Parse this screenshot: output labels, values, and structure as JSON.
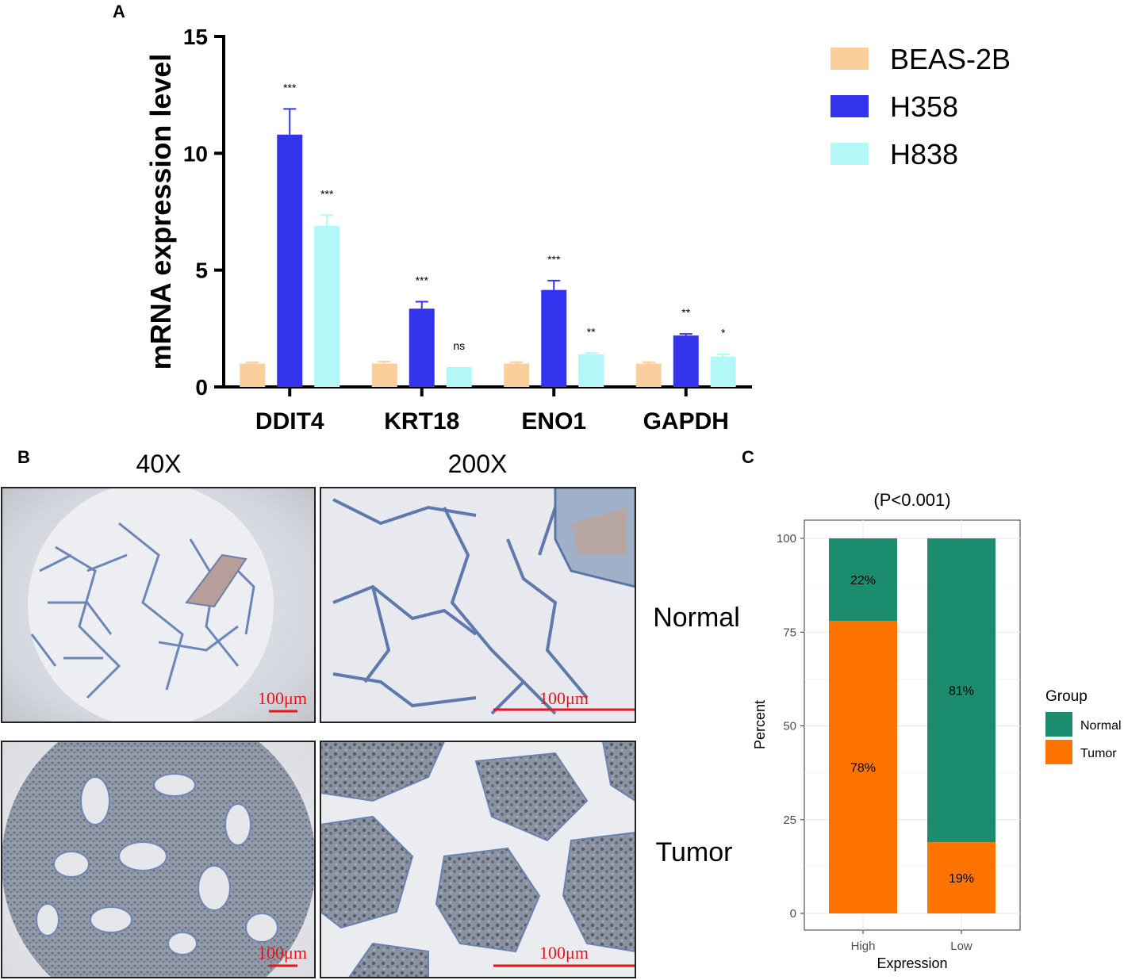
{
  "panels": {
    "a": {
      "letter": "A"
    },
    "b": {
      "letter": "B",
      "magnifications": [
        "40X",
        "200X"
      ],
      "rows": [
        "Normal",
        "Tumor"
      ],
      "scale_bar_label": "100μm"
    },
    "c": {
      "letter": "C"
    }
  },
  "chart_data": [
    {
      "type": "bar",
      "ylabel": "mRNA expression level",
      "ylim": [
        0,
        15
      ],
      "yticks": [
        "0",
        "5",
        "10",
        "15"
      ],
      "categories": [
        "DDIT4",
        "KRT18",
        "ENO1",
        "GAPDH"
      ],
      "legend_position": "top-right",
      "series": [
        {
          "name": "BEAS-2B",
          "color": "#fbcf9c",
          "values": [
            1.0,
            1.0,
            1.0,
            1.0
          ],
          "errors": [
            0.05,
            0.08,
            0.06,
            0.06
          ],
          "significance": [
            "",
            "",
            "",
            ""
          ]
        },
        {
          "name": "H358",
          "color": "#3333ee",
          "values": [
            10.8,
            3.35,
            4.15,
            2.2
          ],
          "errors": [
            1.1,
            0.3,
            0.4,
            0.07
          ],
          "significance": [
            "***",
            "***",
            "***",
            "**"
          ]
        },
        {
          "name": "H838",
          "color": "#b3f7f7",
          "values": [
            6.9,
            0.85,
            1.4,
            1.3
          ],
          "errors": [
            0.45,
            0.0,
            0.05,
            0.1
          ],
          "significance": [
            "***",
            "ns",
            "**",
            "*"
          ]
        }
      ]
    },
    {
      "type": "bar",
      "stacked": true,
      "title": "(P<0.001)",
      "xlabel": "Expression",
      "ylabel": "Percent",
      "ylim": [
        0,
        100
      ],
      "yticks": [
        "0",
        "25",
        "50",
        "75",
        "100"
      ],
      "categories": [
        "High",
        "Low"
      ],
      "legend_title": "Group",
      "legend_position": "right",
      "series": [
        {
          "name": "Tumor",
          "color": "#ff7400",
          "values": [
            78,
            19
          ],
          "labels": [
            "78%",
            "19%"
          ]
        },
        {
          "name": "Normal",
          "color": "#1b8c6e",
          "values": [
            22,
            81
          ],
          "labels": [
            "22%",
            "81%"
          ]
        }
      ]
    }
  ]
}
